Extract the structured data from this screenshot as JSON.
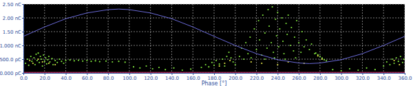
{
  "chart_data": {
    "type": "scatter",
    "x_label": "Phase [°]",
    "xlim": [
      0,
      360
    ],
    "ylim": [
      0,
      2.5
    ],
    "grid": true,
    "xticks": [
      {
        "value": 0,
        "label": "0.0"
      },
      {
        "value": 20,
        "label": "20.0"
      },
      {
        "value": 40,
        "label": "40.0"
      },
      {
        "value": 60,
        "label": "60.0"
      },
      {
        "value": 80,
        "label": "80.0"
      },
      {
        "value": 100,
        "label": "100.0"
      },
      {
        "value": 120,
        "label": "120.0"
      },
      {
        "value": 140,
        "label": "140.0"
      },
      {
        "value": 160,
        "label": "160.0"
      },
      {
        "value": 180,
        "label": "180.0"
      },
      {
        "value": 200,
        "label": "200.0"
      },
      {
        "value": 220,
        "label": "220.0"
      },
      {
        "value": 240,
        "label": "240.0"
      },
      {
        "value": 260,
        "label": "260.0"
      },
      {
        "value": 280,
        "label": "280.0"
      },
      {
        "value": 300,
        "label": "300.0"
      },
      {
        "value": 320,
        "label": "320.0"
      },
      {
        "value": 340,
        "label": "340.0"
      },
      {
        "value": 360,
        "label": "360.0"
      }
    ],
    "yticks": [
      {
        "value": 0,
        "label": "0.000 pC"
      },
      {
        "value": 0.5,
        "label": "500.0 pC"
      },
      {
        "value": 1,
        "label": "1.000 nC"
      },
      {
        "value": 1.5,
        "label": "1.50 nC"
      },
      {
        "value": 2,
        "label": "2.00 nC"
      },
      {
        "value": 2.5,
        "label": "2.50 nC"
      }
    ],
    "series": [
      {
        "type": "scatter",
        "color": "#7ee03c",
        "marker": "circle",
        "x": [
          2,
          4,
          5,
          7,
          8,
          10,
          11,
          12,
          13,
          14,
          15,
          16,
          17,
          18,
          19,
          20,
          21,
          22,
          23,
          24,
          25,
          27,
          28,
          30,
          32,
          34,
          36,
          38,
          40,
          44,
          48,
          52,
          56,
          60,
          64,
          68,
          72,
          78,
          84,
          90,
          96,
          104,
          110,
          116,
          122,
          128,
          134,
          142,
          150,
          158,
          168,
          172,
          175,
          178,
          180,
          182,
          185,
          188,
          190,
          192,
          194,
          196,
          198,
          200,
          204,
          206,
          208,
          210,
          212,
          214,
          215,
          218,
          220,
          222,
          223,
          225,
          226,
          228,
          230,
          231,
          232,
          234,
          235,
          236,
          238,
          239,
          240,
          241,
          242,
          244,
          245,
          246,
          248,
          249,
          250,
          252,
          253,
          255,
          256,
          258,
          260,
          262,
          263,
          265,
          267,
          270,
          272,
          275,
          237,
          228,
          247,
          257,
          276,
          278,
          280,
          282,
          284,
          286,
          292,
          300,
          308,
          316,
          324,
          332,
          340,
          343,
          346,
          348,
          350,
          352,
          354,
          356,
          358,
          359
        ],
        "values": [
          0.35,
          0.5,
          0.28,
          0.6,
          0.42,
          0.55,
          0.3,
          0.68,
          0.45,
          0.72,
          0.38,
          0.6,
          0.5,
          0.25,
          0.65,
          0.42,
          0.55,
          0.33,
          0.48,
          0.6,
          0.4,
          0.52,
          0.3,
          0.45,
          0.38,
          0.5,
          0.42,
          0.35,
          0.45,
          0.47,
          0.44,
          0.46,
          0.43,
          0.45,
          0.42,
          0.44,
          0.41,
          0.43,
          0.4,
          0.42,
          0.39,
          0.22,
          0.18,
          0.25,
          0.15,
          0.2,
          0.12,
          0.18,
          0.1,
          0.14,
          0.2,
          0.3,
          0.22,
          0.38,
          0.28,
          0.45,
          0.32,
          0.5,
          0.25,
          0.6,
          0.75,
          0.55,
          0.4,
          0.3,
          0.6,
          0.9,
          0.5,
          1.1,
          0.7,
          1.3,
          0.55,
          1.6,
          0.85,
          1.9,
          1.2,
          0.65,
          2.1,
          1.45,
          0.9,
          2.3,
          1.7,
          1.1,
          2.4,
          0.75,
          1.95,
          1.35,
          2.2,
          0.95,
          1.6,
          2.0,
          1.15,
          0.7,
          1.8,
          1.4,
          2.1,
          1.0,
          1.65,
          0.8,
          1.3,
          1.9,
          1.1,
          0.75,
          1.5,
          0.95,
          1.2,
          0.85,
          1.05,
          0.7,
          0.55,
          0.5,
          0.5,
          0.55,
          0.72,
          0.66,
          0.6,
          0.54,
          0.48,
          0.44,
          0.12,
          0.08,
          0.15,
          0.1,
          0.18,
          0.12,
          0.25,
          0.4,
          0.3,
          0.5,
          0.35,
          0.55,
          0.42,
          0.6,
          0.38,
          0.5
        ]
      },
      {
        "type": "scatter",
        "color": "#e8e84a",
        "marker": "circle",
        "x": [
          6,
          9,
          14,
          18,
          24,
          30,
          185,
          190,
          195,
          215,
          225,
          240,
          250,
          265,
          278,
          282,
          350,
          355
        ],
        "values": [
          0.45,
          0.35,
          0.5,
          0.4,
          0.35,
          0.3,
          0.25,
          0.35,
          0.45,
          0.4,
          0.35,
          0.3,
          0.4,
          0.35,
          0.62,
          0.5,
          0.45,
          0.3
        ]
      },
      {
        "type": "line",
        "color": "#6a6ad8",
        "line_style": "solid",
        "x": [
          0,
          20,
          40,
          60,
          80,
          90,
          100,
          120,
          140,
          160,
          180,
          200,
          220,
          240,
          260,
          270,
          280,
          300,
          320,
          340,
          360
        ],
        "values": [
          1.33,
          1.67,
          1.97,
          2.18,
          2.3,
          2.32,
          2.3,
          2.18,
          1.97,
          1.67,
          1.33,
          1.0,
          0.7,
          0.48,
          0.36,
          0.34,
          0.36,
          0.48,
          0.7,
          1.0,
          1.33
        ]
      },
      {
        "type": "line",
        "color": "#e0306a",
        "line_style": "solid",
        "x": [
          0,
          360
        ],
        "values": [
          0.02,
          0.02
        ]
      }
    ]
  }
}
